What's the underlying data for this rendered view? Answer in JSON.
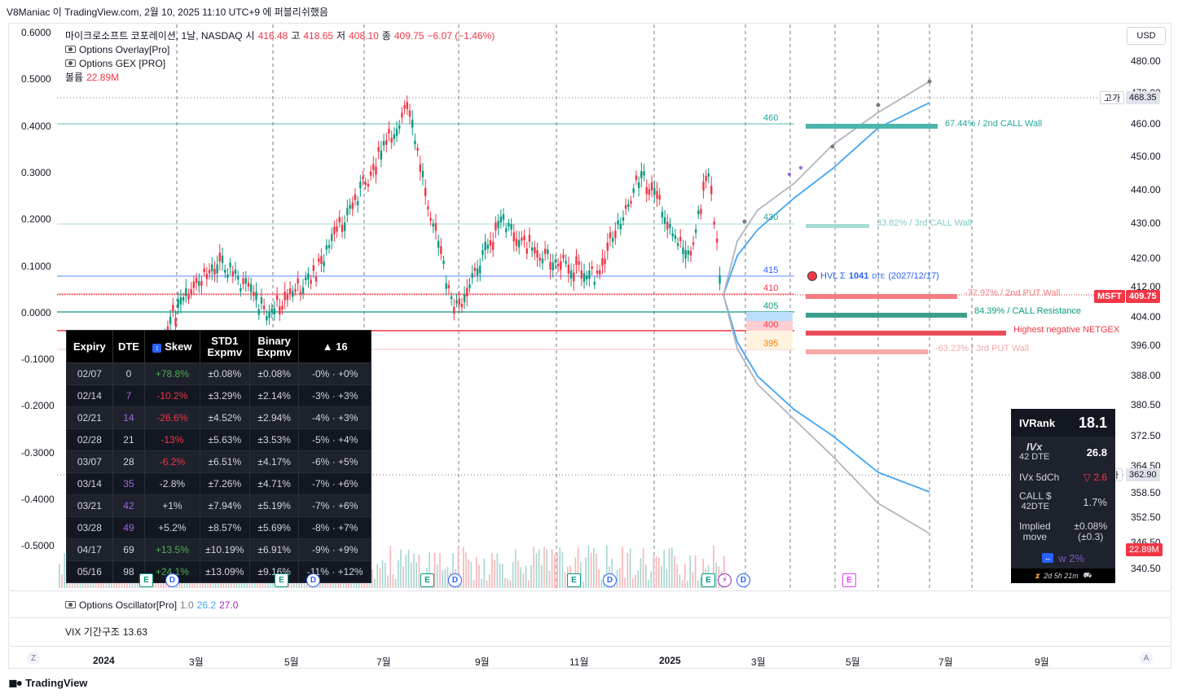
{
  "topbar": {
    "text": "V8Maniac 이 TradingView.com, 2월 10, 2025 11:10 UTC+9 에 퍼블리쉬했음"
  },
  "legend": {
    "symbol_line": "마이크로소프트 코포레이션, 1날, NASDAQ",
    "o_label": "시",
    "o_value": "416.48",
    "h_label": "고",
    "h_value": "418.65",
    "l_label": "저",
    "l_value": "408.10",
    "c_label": "종",
    "c_value": "409.75",
    "change": "−6.07 (−1.46%)",
    "indicators": [
      "Options Overlay[Pro]",
      "Options GEX [PRO]"
    ],
    "volume_label": "볼륨",
    "volume_value": "22.89M"
  },
  "currency_button": "USD",
  "left_axis_ticks": [
    "0.6000",
    "0.5000",
    "0.4000",
    "0.3000",
    "0.2000",
    "0.1000",
    "0.0000",
    "-0.1000",
    "-0.2000",
    "-0.3000",
    "-0.4000",
    "-0.5000"
  ],
  "right_axis_ticks": [
    "480.00",
    "470.00",
    "460.00",
    "450.00",
    "440.00",
    "430.00",
    "420.00",
    "412.00",
    "404.00",
    "396.00",
    "388.00",
    "380.50",
    "372.50",
    "364.50",
    "358.50",
    "352.50",
    "346.50",
    "340.50"
  ],
  "price_tags": {
    "high_label": "고가",
    "high_value": "468.35",
    "msft_label": "MSFT",
    "msft_value": "409.75",
    "low_label": "저가",
    "low_value": "362.90",
    "volume_value": "22.89M"
  },
  "strike_labels": [
    "460",
    "430",
    "415",
    "410",
    "405",
    "400",
    "395"
  ],
  "gex_annotations": {
    "call_wall_2": "67.44% / 2nd CALL Wall",
    "call_wall_3": "33.82% / 3rd CALL Wall",
    "hvl_prefix": "HVL Σ",
    "hvl_value": "1041",
    "hvl_dte": "DTE",
    "hvl_date": "(2027/12/17)",
    "put_wall_2": "-77.97% / 2nd PUT Wall",
    "call_resistance": "84.39% / CALL Resistance",
    "neg_netgex": "Highest negative NETGEX",
    "put_wall_3": "-63.23% / 3rd PUT Wall"
  },
  "options_table": {
    "headers": {
      "expiry": "Expiry",
      "dte": "DTE",
      "skew": "Skew",
      "std1_a": "STD1",
      "std1_b": "Expmv",
      "bin_a": "Binary",
      "bin_b": "Expmv",
      "range": "▲ 16"
    },
    "rows": [
      {
        "expiry": "02/07",
        "dte": "0",
        "skew": "+78.8%",
        "std1": "±0.08%",
        "binary": "±0.08%",
        "range": "-0% · +0%",
        "tone": "pos"
      },
      {
        "expiry": "02/14",
        "dte": "7",
        "skew": "-10.2%",
        "std1": "±3.29%",
        "binary": "±2.14%",
        "range": "-3% · +3%",
        "tone": "neg"
      },
      {
        "expiry": "02/21",
        "dte": "14",
        "skew": "-26.6%",
        "std1": "±4.52%",
        "binary": "±2.94%",
        "range": "-4% · +3%",
        "tone": "neg"
      },
      {
        "expiry": "02/28",
        "dte": "21",
        "skew": "-13%",
        "std1": "±5.63%",
        "binary": "±3.53%",
        "range": "-5% · +4%",
        "tone": "neg"
      },
      {
        "expiry": "03/07",
        "dte": "28",
        "skew": "-6.2%",
        "std1": "±6.51%",
        "binary": "±4.17%",
        "range": "-6% · +5%",
        "tone": "neg"
      },
      {
        "expiry": "03/14",
        "dte": "35",
        "skew": "-2.8%",
        "std1": "±7.26%",
        "binary": "±4.71%",
        "range": "-7% · +6%",
        "tone": "neu"
      },
      {
        "expiry": "03/21",
        "dte": "42",
        "skew": "+1%",
        "std1": "±7.94%",
        "binary": "±5.19%",
        "range": "-7% · +6%",
        "tone": "neu"
      },
      {
        "expiry": "03/28",
        "dte": "49",
        "skew": "+5.2%",
        "std1": "±8.57%",
        "binary": "±5.69%",
        "range": "-8% · +7%",
        "tone": "neu"
      },
      {
        "expiry": "04/17",
        "dte": "69",
        "skew": "+13.5%",
        "std1": "±10.19%",
        "binary": "±6.91%",
        "range": "-9% · +9%",
        "tone": "pos"
      },
      {
        "expiry": "05/16",
        "dte": "98",
        "skew": "+24.1%",
        "std1": "±13.09%",
        "binary": "±9.16%",
        "range": "-11% · +12%",
        "tone": "pos"
      }
    ]
  },
  "ivrank": {
    "ivrank_label": "IVRank",
    "ivrank_value": "18.1",
    "ivx_label": "IVx",
    "ivx_dte": "42 DTE",
    "ivx_value": "26.8",
    "ivx5d_label": "IVx 5dCh",
    "ivx5d_value": "▽ 2.6",
    "call_label": "CALL $",
    "call_dte": "42DTE",
    "call_value": "1.7%",
    "implied_label_a": "Implied",
    "implied_label_b": "move",
    "implied_value_a": "±0.08%",
    "implied_value_b": "(±0.3)",
    "w_label": "w 2%",
    "timer": "2d 5h 21m"
  },
  "osc": {
    "name": "Options Oscillator[Pro]",
    "v1": "1.0",
    "v2": "26.2",
    "v3": "27.0"
  },
  "vix": {
    "name": "VIX 기간구조",
    "value": "13.63"
  },
  "time_axis": [
    "2024",
    "3월",
    "5월",
    "7월",
    "9월",
    "11월",
    "2025",
    "3월",
    "5월",
    "7월",
    "9월"
  ],
  "time_axis_buttons": {
    "left": "Z",
    "right": "A"
  },
  "footer": {
    "brand": "TradingView"
  },
  "colors": {
    "up": "#089981",
    "down": "#f23645",
    "call_wall": "#26a69a",
    "put_wall": "#f23645",
    "cone_blue": "#42a5f5",
    "cone_gray": "#b2b5be"
  },
  "chart_data": {
    "type": "candlestick",
    "title": "마이크로소프트 코포레이션, 1날, NASDAQ",
    "y_right_range": [
      336,
      485
    ],
    "y_left_range": [
      -0.6,
      0.62
    ],
    "x_range": [
      "2023-12",
      "2025-09"
    ],
    "ohlc_last": {
      "open": 416.48,
      "high": 418.65,
      "low": 408.1,
      "close": 409.75
    },
    "high_line": 468.35,
    "low_line": 362.9,
    "approx_close_path": [
      {
        "x": "2024-01",
        "y": 378
      },
      {
        "x": "2024-02",
        "y": 404
      },
      {
        "x": "2024-03",
        "y": 420
      },
      {
        "x": "2024-04",
        "y": 405
      },
      {
        "x": "2024-05",
        "y": 415
      },
      {
        "x": "2024-06",
        "y": 440
      },
      {
        "x": "2024-07",
        "y": 465
      },
      {
        "x": "2024-08",
        "y": 405
      },
      {
        "x": "2024-09",
        "y": 430
      },
      {
        "x": "2024-10",
        "y": 420
      },
      {
        "x": "2024-11",
        "y": 415
      },
      {
        "x": "2024-12",
        "y": 445
      },
      {
        "x": "2025-01",
        "y": 420
      },
      {
        "x": "2025-01-28",
        "y": 445
      },
      {
        "x": "2025-02-07",
        "y": 409.75
      }
    ],
    "gex_levels": [
      {
        "strike": 460,
        "label": "67.44% / 2nd CALL Wall"
      },
      {
        "strike": 430,
        "label": "33.82% / 3rd CALL Wall"
      },
      {
        "strike": 410,
        "label": "-77.97% / 2nd PUT Wall"
      },
      {
        "strike": 405,
        "label": "84.39% / CALL Resistance"
      },
      {
        "strike": 400,
        "label": "Highest negative NETGEX"
      },
      {
        "strike": 395,
        "label": "-63.23% / 3rd PUT Wall"
      }
    ]
  }
}
